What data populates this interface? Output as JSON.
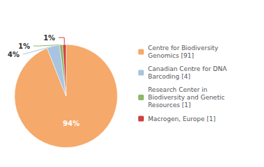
{
  "chart_data": {
    "type": "pie",
    "categories": [
      "Centre for Biodiversity\nGenomics [91]",
      "Canadian Centre for DNA\nBarcoding [4]",
      "Research Center in\nBiodiversity and Genetic\nResources [1]",
      "Macrogen, Europe [1]"
    ],
    "values": [
      94,
      4,
      1,
      1
    ],
    "value_labels": [
      "94%",
      "4%",
      "1%",
      "1%"
    ],
    "colors": [
      "#f5a96a",
      "#a8c4e0",
      "#8cb868",
      "#d04040"
    ],
    "data_labels": true,
    "legend": "right"
  }
}
